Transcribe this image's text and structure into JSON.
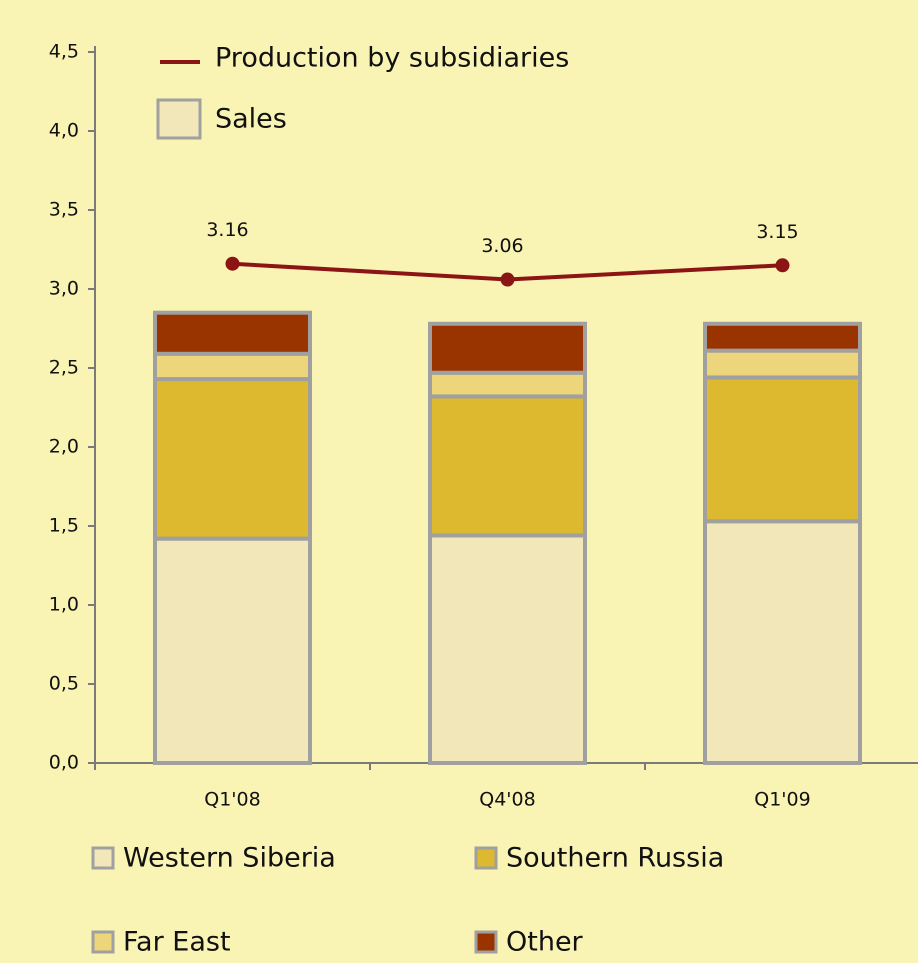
{
  "chart_data": {
    "type": "bar",
    "stacked": true,
    "categories": [
      "Q1'08",
      "Q4'08",
      "Q1'09"
    ],
    "series": [
      {
        "name": "Western Siberia",
        "color": "#f2e7b9",
        "values": [
          1.42,
          1.44,
          1.53
        ]
      },
      {
        "name": "Southern Russia",
        "color": "#dcb92e",
        "values": [
          1.01,
          0.88,
          0.91
        ]
      },
      {
        "name": "Far East",
        "color": "#ecd57b",
        "values": [
          0.16,
          0.15,
          0.17
        ]
      },
      {
        "name": "Other",
        "color": "#993300",
        "values": [
          0.26,
          0.31,
          0.17
        ]
      },
      {
        "name": "Production by subsidiaries",
        "type": "line",
        "color": "#8b1414",
        "values": [
          3.16,
          3.06,
          3.15
        ]
      }
    ],
    "sales_label": "Sales",
    "ylim": [
      0,
      4.5
    ],
    "yticks": [
      {
        "value": 0,
        "label": "0,0"
      },
      {
        "value": 0.5,
        "label": "0,5"
      },
      {
        "value": 1,
        "label": "1,0"
      },
      {
        "value": 1.5,
        "label": "1,5"
      },
      {
        "value": 2,
        "label": "2,0"
      },
      {
        "value": 2.5,
        "label": "2,5"
      },
      {
        "value": 3,
        "label": "3,0"
      },
      {
        "value": 3.5,
        "label": "3,5"
      },
      {
        "value": 4,
        "label": "4,0"
      },
      {
        "value": 4.5,
        "label": "4,5"
      }
    ],
    "grid": false
  }
}
